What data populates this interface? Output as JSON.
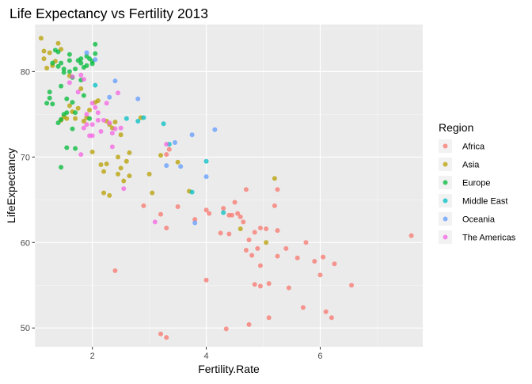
{
  "chart_data": {
    "type": "scatter",
    "title": "Life Expectancy vs Fertility 2013",
    "xlabel": "Fertility.Rate",
    "ylabel": "LifeExpectancy",
    "xlim": [
      0.99,
      7.8
    ],
    "ylim": [
      47.8,
      85.5
    ],
    "x_ticks": [
      2,
      4,
      6
    ],
    "y_ticks": [
      50,
      60,
      70,
      80
    ],
    "x_minor": [
      1,
      3,
      5,
      7
    ],
    "y_minor": [
      55,
      65,
      75,
      85
    ],
    "grid": true,
    "legend": {
      "title": "Region",
      "position": "right"
    },
    "series": [
      {
        "name": "Africa",
        "color": "#F8766D",
        "points": [
          [
            2.4,
            56.7
          ],
          [
            3.2,
            49.3
          ],
          [
            3.3,
            48.9
          ],
          [
            2.9,
            64.3
          ],
          [
            3.2,
            63.3
          ],
          [
            3.3,
            61.7
          ],
          [
            3.3,
            70.3
          ],
          [
            3.35,
            70.9
          ],
          [
            3.5,
            64.2
          ],
          [
            3.8,
            62.7
          ],
          [
            4.0,
            63.8
          ],
          [
            4.05,
            63.4
          ],
          [
            4.0,
            55.6
          ],
          [
            4.25,
            61.1
          ],
          [
            4.3,
            64.0
          ],
          [
            4.4,
            63.2
          ],
          [
            4.4,
            61.0
          ],
          [
            4.45,
            63.2
          ],
          [
            4.5,
            64.7
          ],
          [
            4.55,
            63.4
          ],
          [
            4.6,
            63.0
          ],
          [
            4.65,
            62.4
          ],
          [
            4.7,
            66.2
          ],
          [
            4.7,
            59.1
          ],
          [
            4.75,
            60.3
          ],
          [
            4.8,
            58.5
          ],
          [
            4.85,
            61.2
          ],
          [
            4.85,
            55.1
          ],
          [
            4.9,
            59.3
          ],
          [
            4.95,
            57.3
          ],
          [
            4.95,
            54.9
          ],
          [
            4.95,
            61.7
          ],
          [
            5.05,
            61.6
          ],
          [
            5.1,
            55.2
          ],
          [
            5.1,
            51.2
          ],
          [
            5.2,
            64.3
          ],
          [
            5.25,
            58.4
          ],
          [
            5.25,
            61.4
          ],
          [
            5.25,
            66.2
          ],
          [
            5.4,
            59.3
          ],
          [
            5.45,
            54.7
          ],
          [
            5.6,
            58.2
          ],
          [
            5.7,
            52.4
          ],
          [
            5.75,
            60.0
          ],
          [
            5.9,
            57.8
          ],
          [
            6.0,
            56.2
          ],
          [
            6.05,
            58.3
          ],
          [
            6.1,
            51.9
          ],
          [
            6.2,
            51.2
          ],
          [
            6.25,
            57.5
          ],
          [
            6.55,
            55.0
          ],
          [
            7.6,
            60.8
          ],
          [
            4.35,
            49.9
          ],
          [
            4.75,
            50.4
          ]
        ]
      },
      {
        "name": "Asia",
        "color": "#B79F00",
        "points": [
          [
            1.1,
            83.9
          ],
          [
            1.15,
            82.4
          ],
          [
            1.15,
            81.5
          ],
          [
            1.2,
            80.4
          ],
          [
            1.25,
            82.2
          ],
          [
            1.3,
            80.7
          ],
          [
            1.35,
            81.2
          ],
          [
            1.4,
            83.3
          ],
          [
            1.45,
            82.6
          ],
          [
            1.45,
            74.3
          ],
          [
            1.5,
            74.7
          ],
          [
            1.55,
            74.5
          ],
          [
            1.6,
            79.5
          ],
          [
            1.6,
            76.0
          ],
          [
            1.65,
            75.3
          ],
          [
            1.7,
            74.5
          ],
          [
            1.75,
            75.7
          ],
          [
            1.8,
            78.0
          ],
          [
            1.85,
            74.2
          ],
          [
            1.9,
            74.6
          ],
          [
            1.95,
            75.5
          ],
          [
            2.0,
            70.6
          ],
          [
            2.05,
            76.4
          ],
          [
            2.1,
            76.6
          ],
          [
            2.15,
            69.1
          ],
          [
            2.2,
            68.3
          ],
          [
            2.2,
            65.8
          ],
          [
            2.25,
            69.2
          ],
          [
            2.25,
            74.2
          ],
          [
            2.3,
            65.5
          ],
          [
            2.3,
            73.8
          ],
          [
            2.35,
            73.4
          ],
          [
            2.4,
            74.1
          ],
          [
            2.45,
            70.0
          ],
          [
            2.45,
            68.0
          ],
          [
            2.5,
            68.7
          ],
          [
            2.5,
            72.6
          ],
          [
            2.55,
            67.2
          ],
          [
            2.6,
            69.5
          ],
          [
            2.65,
            70.5
          ],
          [
            2.65,
            67.8
          ],
          [
            2.85,
            74.6
          ],
          [
            3.0,
            68.0
          ],
          [
            3.05,
            65.8
          ],
          [
            3.2,
            70.2
          ],
          [
            3.5,
            69.4
          ],
          [
            3.7,
            66.0
          ],
          [
            4.6,
            61.6
          ],
          [
            5.05,
            60.0
          ],
          [
            5.2,
            67.5
          ]
        ]
      },
      {
        "name": "Europe",
        "color": "#00BA38",
        "points": [
          [
            1.2,
            76.3
          ],
          [
            1.25,
            77.6
          ],
          [
            1.25,
            76.9
          ],
          [
            1.3,
            76.2
          ],
          [
            1.3,
            81.0
          ],
          [
            1.35,
            82.5
          ],
          [
            1.4,
            80.6
          ],
          [
            1.4,
            82.3
          ],
          [
            1.45,
            81.0
          ],
          [
            1.45,
            78.3
          ],
          [
            1.45,
            74.4
          ],
          [
            1.45,
            68.8
          ],
          [
            1.5,
            80.3
          ],
          [
            1.5,
            79.9
          ],
          [
            1.55,
            76.8
          ],
          [
            1.55,
            71.1
          ],
          [
            1.55,
            75.2
          ],
          [
            1.6,
            82.0
          ],
          [
            1.6,
            81.3
          ],
          [
            1.6,
            80.0
          ],
          [
            1.65,
            79.3
          ],
          [
            1.65,
            76.4
          ],
          [
            1.65,
            73.3
          ],
          [
            1.7,
            80.3
          ],
          [
            1.7,
            75.2
          ],
          [
            1.7,
            71.0
          ],
          [
            1.75,
            81.3
          ],
          [
            1.8,
            81.5
          ],
          [
            1.8,
            81.0
          ],
          [
            1.8,
            79.0
          ],
          [
            1.85,
            80.5
          ],
          [
            1.85,
            77.2
          ],
          [
            1.9,
            81.8
          ],
          [
            1.9,
            80.7
          ],
          [
            1.95,
            81.5
          ],
          [
            2.0,
            80.9
          ],
          [
            2.0,
            81.2
          ],
          [
            2.05,
            82.1
          ],
          [
            2.05,
            83.2
          ],
          [
            1.95,
            74.5
          ],
          [
            1.5,
            75.0
          ],
          [
            1.4,
            74.0
          ]
        ]
      },
      {
        "name": "Middle East",
        "color": "#00BFC4",
        "points": [
          [
            2.05,
            78.4
          ],
          [
            2.6,
            74.5
          ],
          [
            2.8,
            74.2
          ],
          [
            2.9,
            74.6
          ],
          [
            3.25,
            73.9
          ],
          [
            3.35,
            71.5
          ],
          [
            3.75,
            65.9
          ],
          [
            4.0,
            69.5
          ],
          [
            4.3,
            63.5
          ]
        ]
      },
      {
        "name": "Oceania",
        "color": "#619CFF",
        "points": [
          [
            1.9,
            82.2
          ],
          [
            2.05,
            81.4
          ],
          [
            2.4,
            78.9
          ],
          [
            2.3,
            77.0
          ],
          [
            2.8,
            76.8
          ],
          [
            3.3,
            69.0
          ],
          [
            3.45,
            71.7
          ],
          [
            3.55,
            68.9
          ],
          [
            3.75,
            72.6
          ],
          [
            3.8,
            62.3
          ],
          [
            4.0,
            67.7
          ],
          [
            4.15,
            73.2
          ]
        ]
      },
      {
        "name": "The Americas",
        "color": "#F564E3",
        "points": [
          [
            1.6,
            78.7
          ],
          [
            1.65,
            79.4
          ],
          [
            1.75,
            77.6
          ],
          [
            1.8,
            79.6
          ],
          [
            1.85,
            79.1
          ],
          [
            1.8,
            70.3
          ],
          [
            1.85,
            73.4
          ],
          [
            1.9,
            73.8
          ],
          [
            1.9,
            75.0
          ],
          [
            1.95,
            72.5
          ],
          [
            2.0,
            73.8
          ],
          [
            2.0,
            72.5
          ],
          [
            2.05,
            75.8
          ],
          [
            2.1,
            75.2
          ],
          [
            2.1,
            74.3
          ],
          [
            2.15,
            73.0
          ],
          [
            2.2,
            74.3
          ],
          [
            2.25,
            76.3
          ],
          [
            2.3,
            74.0
          ],
          [
            2.35,
            71.2
          ],
          [
            2.35,
            72.8
          ],
          [
            2.45,
            77.5
          ],
          [
            2.5,
            73.4
          ],
          [
            2.55,
            66.3
          ],
          [
            3.1,
            62.4
          ],
          [
            3.3,
            71.5
          ],
          [
            2.4,
            73.3
          ],
          [
            2.0,
            76.3
          ]
        ]
      }
    ]
  }
}
